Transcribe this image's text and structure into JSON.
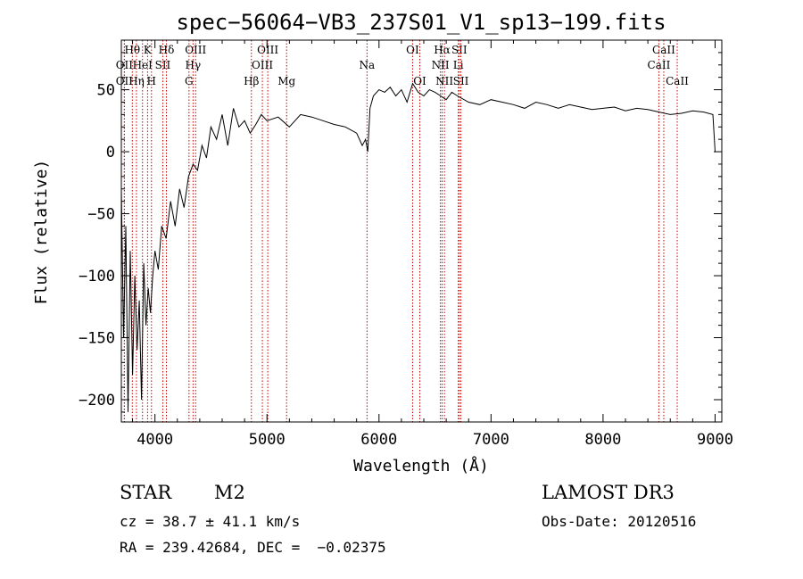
{
  "chart_data": {
    "type": "line",
    "title": "spec−56064−VB3_237S01_V1_sp13−199.fits",
    "xlabel": "Wavelength (Å)",
    "ylabel": "Flux (relative)",
    "xlim": [
      3700,
      9060
    ],
    "ylim": [
      -218,
      90
    ],
    "x_ticks": [
      4000,
      5000,
      6000,
      7000,
      8000,
      9000
    ],
    "y_ticks": [
      -200,
      -150,
      -100,
      -50,
      0,
      50
    ],
    "y_tick_labels": [
      "−200",
      "−150",
      "−100",
      "−50",
      "0",
      "50"
    ],
    "series": [
      {
        "name": "spectrum",
        "x": [
          3700,
          3720,
          3740,
          3760,
          3780,
          3800,
          3820,
          3840,
          3860,
          3880,
          3900,
          3920,
          3940,
          3960,
          3980,
          4000,
          4030,
          4060,
          4100,
          4140,
          4180,
          4220,
          4260,
          4300,
          4340,
          4380,
          4420,
          4460,
          4500,
          4550,
          4600,
          4650,
          4700,
          4750,
          4800,
          4850,
          4900,
          4950,
          5000,
          5100,
          5200,
          5300,
          5400,
          5500,
          5600,
          5700,
          5800,
          5850,
          5880,
          5900,
          5920,
          5950,
          6000,
          6050,
          6100,
          6150,
          6200,
          6250,
          6300,
          6350,
          6400,
          6450,
          6500,
          6550,
          6600,
          6650,
          6700,
          6800,
          6900,
          7000,
          7100,
          7200,
          7300,
          7400,
          7500,
          7600,
          7700,
          7800,
          7900,
          8000,
          8100,
          8200,
          8300,
          8400,
          8500,
          8600,
          8700,
          8800,
          8900,
          8980,
          9000
        ],
        "y": [
          -30,
          -150,
          -60,
          -210,
          -80,
          -180,
          -100,
          -160,
          -120,
          -200,
          -90,
          -140,
          -110,
          -130,
          -100,
          -80,
          -95,
          -60,
          -70,
          -40,
          -60,
          -30,
          -45,
          -20,
          -10,
          -15,
          5,
          -5,
          20,
          10,
          30,
          5,
          35,
          20,
          25,
          15,
          22,
          30,
          25,
          28,
          20,
          30,
          28,
          25,
          22,
          20,
          15,
          5,
          10,
          0,
          35,
          45,
          50,
          48,
          52,
          45,
          50,
          40,
          55,
          48,
          45,
          50,
          48,
          45,
          42,
          48,
          45,
          40,
          38,
          42,
          40,
          38,
          35,
          40,
          38,
          35,
          38,
          36,
          34,
          35,
          36,
          33,
          35,
          34,
          32,
          30,
          31,
          33,
          32,
          30,
          0
        ]
      }
    ],
    "line_markers": [
      {
        "label": "Hθ",
        "wavelength": 3798,
        "row": 0
      },
      {
        "label": "OII",
        "wavelength": 3727,
        "row": 1
      },
      {
        "label": "OII",
        "wavelength": 3727,
        "row": 2
      },
      {
        "label": "K",
        "wavelength": 3934,
        "row": 0
      },
      {
        "label": "HeI",
        "wavelength": 3889,
        "row": 1
      },
      {
        "label": "Hη",
        "wavelength": 3835,
        "row": 2
      },
      {
        "label": "Hδ",
        "wavelength": 4102,
        "row": 0
      },
      {
        "label": "SII",
        "wavelength": 4070,
        "row": 1
      },
      {
        "label": "H",
        "wavelength": 3969,
        "row": 2
      },
      {
        "label": "OIII",
        "wavelength": 4363,
        "row": 0
      },
      {
        "label": "Hγ",
        "wavelength": 4340,
        "row": 1
      },
      {
        "label": "G",
        "wavelength": 4304,
        "row": 2
      },
      {
        "label": "OIII",
        "wavelength": 5007,
        "row": 0
      },
      {
        "label": "OIII",
        "wavelength": 4959,
        "row": 1
      },
      {
        "label": "Hβ",
        "wavelength": 4861,
        "row": 2
      },
      {
        "label": "Mg",
        "wavelength": 5175,
        "row": 2
      },
      {
        "label": "Na",
        "wavelength": 5893,
        "row": 1
      },
      {
        "label": "OI",
        "wavelength": 6300,
        "row": 0
      },
      {
        "label": "OI",
        "wavelength": 6364,
        "row": 2
      },
      {
        "label": "Hα",
        "wavelength": 6563,
        "row": 0
      },
      {
        "label": "SII",
        "wavelength": 6717,
        "row": 0
      },
      {
        "label": "NII",
        "wavelength": 6548,
        "row": 1
      },
      {
        "label": "Li",
        "wavelength": 6708,
        "row": 1
      },
      {
        "label": "NII",
        "wavelength": 6584,
        "row": 2
      },
      {
        "label": "SII",
        "wavelength": 6731,
        "row": 2
      },
      {
        "label": "CaII",
        "wavelength": 8542,
        "row": 0
      },
      {
        "label": "CaII",
        "wavelength": 8498,
        "row": 1
      },
      {
        "label": "CaII",
        "wavelength": 8662,
        "row": 2
      }
    ]
  },
  "info": {
    "object_class": "STAR",
    "subclass": "M2",
    "survey": "LAMOST DR3",
    "redshift": "cz = 38.7 ± 41.1 km/s",
    "obs_date": "Obs-Date: 20120516",
    "coords": "RA = 239.42684, DEC =  −0.02375"
  },
  "colors": {
    "spectrum": "#000000",
    "marker_line": "#cc0000",
    "axis": "#000000"
  }
}
